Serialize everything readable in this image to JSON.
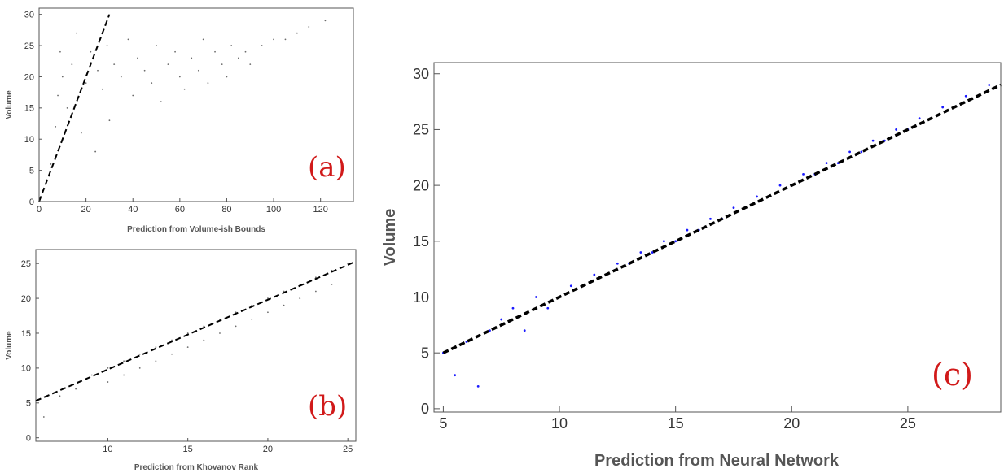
{
  "colors": {
    "gray_points": "#6b6b6b",
    "blue_points": "#1a1aff",
    "fit_line": "#000000",
    "panel_label": "#d11a1a"
  },
  "chart_data": [
    {
      "type": "scatter",
      "label": "(a)",
      "xlabel": "Prediction from Volume-ish Bounds",
      "ylabel": "Volume",
      "xlim": [
        0,
        134
      ],
      "ylim": [
        0,
        31
      ],
      "xticks": [
        0,
        20,
        40,
        60,
        80,
        100,
        120
      ],
      "yticks": [
        0,
        5,
        10,
        15,
        20,
        25,
        30
      ],
      "reference_line": {
        "x": [
          0,
          30
        ],
        "y": [
          0,
          30
        ]
      },
      "series": [
        {
          "color": "#6b6b6b",
          "points": [
            [
              5,
              6
            ],
            [
              7,
              12
            ],
            [
              8,
              17
            ],
            [
              9,
              24
            ],
            [
              10,
              20
            ],
            [
              12,
              15
            ],
            [
              14,
              22
            ],
            [
              16,
              27
            ],
            [
              18,
              11
            ],
            [
              20,
              19
            ],
            [
              22,
              24
            ],
            [
              24,
              8
            ],
            [
              25,
              21
            ],
            [
              27,
              18
            ],
            [
              29,
              25
            ],
            [
              30,
              13
            ],
            [
              32,
              22
            ],
            [
              35,
              20
            ],
            [
              38,
              26
            ],
            [
              40,
              17
            ],
            [
              42,
              23
            ],
            [
              45,
              21
            ],
            [
              48,
              19
            ],
            [
              50,
              25
            ],
            [
              52,
              16
            ],
            [
              55,
              22
            ],
            [
              58,
              24
            ],
            [
              60,
              20
            ],
            [
              62,
              18
            ],
            [
              65,
              23
            ],
            [
              68,
              21
            ],
            [
              70,
              26
            ],
            [
              72,
              19
            ],
            [
              75,
              24
            ],
            [
              78,
              22
            ],
            [
              80,
              20
            ],
            [
              82,
              25
            ],
            [
              85,
              23
            ],
            [
              88,
              24
            ],
            [
              90,
              22
            ],
            [
              95,
              25
            ],
            [
              100,
              26
            ],
            [
              105,
              26
            ],
            [
              110,
              27
            ],
            [
              115,
              28
            ],
            [
              122,
              29
            ]
          ]
        }
      ]
    },
    {
      "type": "scatter",
      "label": "(b)",
      "xlabel": "Prediction from Khovanov Rank",
      "ylabel": "Volume",
      "xlim": [
        5.5,
        25.5
      ],
      "ylim": [
        -0.5,
        27
      ],
      "xticks": [
        10,
        15,
        20,
        25
      ],
      "yticks": [
        0,
        5,
        10,
        15,
        20,
        25
      ],
      "reference_line": {
        "x": [
          5.5,
          25.5
        ],
        "y": [
          5.3,
          25.3
        ]
      },
      "series": [
        {
          "color": "#6b6b6b",
          "points": [
            [
              6,
              3
            ],
            [
              7,
              6
            ],
            [
              8,
              7
            ],
            [
              9,
              9
            ],
            [
              10,
              10
            ],
            [
              10,
              8
            ],
            [
              11,
              11
            ],
            [
              11,
              9
            ],
            [
              12,
              12
            ],
            [
              12,
              10
            ],
            [
              13,
              13
            ],
            [
              13,
              11
            ],
            [
              14,
              14
            ],
            [
              14,
              12
            ],
            [
              15,
              15
            ],
            [
              15,
              13
            ],
            [
              16,
              16
            ],
            [
              16,
              14
            ],
            [
              17,
              17
            ],
            [
              17,
              15
            ],
            [
              18,
              18
            ],
            [
              18,
              16
            ],
            [
              19,
              19
            ],
            [
              19,
              17
            ],
            [
              20,
              20
            ],
            [
              20,
              18
            ],
            [
              21,
              21
            ],
            [
              21,
              19
            ],
            [
              22,
              22
            ],
            [
              22,
              20
            ],
            [
              23,
              23
            ],
            [
              23,
              21
            ],
            [
              24,
              24
            ],
            [
              24,
              22
            ],
            [
              25,
              25
            ]
          ]
        }
      ]
    },
    {
      "type": "scatter",
      "label": "(c)",
      "xlabel": "Prediction from Neural Network",
      "ylabel": "Volume",
      "xlim": [
        4.6,
        29
      ],
      "ylim": [
        -0.3,
        31
      ],
      "xticks": [
        5,
        10,
        15,
        20,
        25
      ],
      "yticks": [
        0,
        5,
        10,
        15,
        20,
        25,
        30
      ],
      "reference_line": {
        "x": [
          5,
          29
        ],
        "y": [
          5,
          29
        ]
      },
      "series": [
        {
          "color": "#1a1aff",
          "points": [
            [
              5,
              5
            ],
            [
              5.5,
              3
            ],
            [
              6,
              6
            ],
            [
              6.5,
              2
            ],
            [
              7,
              7
            ],
            [
              7.5,
              8
            ],
            [
              8,
              9
            ],
            [
              8.5,
              7
            ],
            [
              9,
              10
            ],
            [
              9.5,
              9
            ],
            [
              10,
              10
            ],
            [
              10.5,
              11
            ],
            [
              11,
              11
            ],
            [
              11.5,
              12
            ],
            [
              12,
              12
            ],
            [
              12.5,
              13
            ],
            [
              13,
              13
            ],
            [
              13.5,
              14
            ],
            [
              14,
              14
            ],
            [
              14.5,
              15
            ],
            [
              15,
              15
            ],
            [
              15.5,
              16
            ],
            [
              16,
              16
            ],
            [
              16.5,
              17
            ],
            [
              17,
              17
            ],
            [
              17.5,
              18
            ],
            [
              18,
              18
            ],
            [
              18.5,
              19
            ],
            [
              19,
              19
            ],
            [
              19.5,
              20
            ],
            [
              20,
              20
            ],
            [
              20.5,
              21
            ],
            [
              21,
              21
            ],
            [
              21.5,
              22
            ],
            [
              22,
              22
            ],
            [
              22.5,
              23
            ],
            [
              23,
              23
            ],
            [
              23.5,
              24
            ],
            [
              24,
              24
            ],
            [
              24.5,
              25
            ],
            [
              25,
              25
            ],
            [
              25.5,
              26
            ],
            [
              26,
              26
            ],
            [
              26.5,
              27
            ],
            [
              27,
              27
            ],
            [
              27.5,
              28
            ],
            [
              28,
              28
            ],
            [
              28.5,
              29
            ]
          ]
        }
      ]
    }
  ]
}
